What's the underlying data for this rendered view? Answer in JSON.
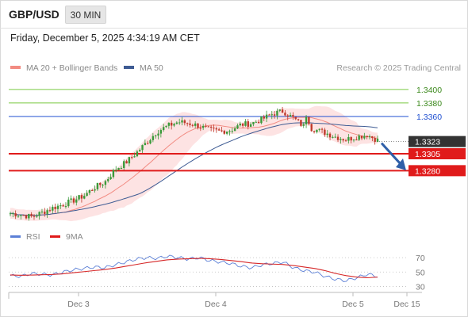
{
  "header": {
    "symbol": "GBP/USD",
    "timeframe": "30 MIN"
  },
  "datetime": "Friday, December 5, 2025 4:34:19 AM CET",
  "legend": {
    "ma_bb": "MA 20 + Bollinger Bands",
    "ma50": "MA 50"
  },
  "credit": "Research © 2025 Trading Central",
  "rsi_legend": {
    "rsi": "RSI",
    "ma": "9MA"
  },
  "colors": {
    "up": "#3a9a3a",
    "down": "#c0392b",
    "ma20": "#f28b82",
    "bb_fill": "#fde3e3",
    "ma50": "#3e5b93",
    "resistance": "#7ac943",
    "pivot": "#1f4fd1",
    "support": "#e01b1b",
    "price_tag": "#333333",
    "arrow": "#2f5fa8",
    "rsi": "#5b7fd6",
    "rsi_ma": "#d62728"
  },
  "chart_data": [
    {
      "type": "candlestick",
      "title": "GBP/USD",
      "x_ticks": [
        "Dec 3",
        "Dec 4",
        "Dec 5",
        "Dec 15"
      ],
      "levels": [
        {
          "value": 1.34,
          "label": "1.3400",
          "kind": "resistance"
        },
        {
          "value": 1.338,
          "label": "1.3380",
          "kind": "resistance"
        },
        {
          "value": 1.336,
          "label": "1.3360",
          "kind": "pivot"
        },
        {
          "value": 1.3323,
          "label": "1.3323",
          "kind": "price"
        },
        {
          "value": 1.3305,
          "label": "1.3305",
          "kind": "support"
        },
        {
          "value": 1.328,
          "label": "1.3280",
          "kind": "support"
        }
      ],
      "ylim": [
        1.3195,
        1.3415
      ],
      "close_path": [
        1.3217,
        1.3215,
        1.3212,
        1.3218,
        1.3225,
        1.323,
        1.3236,
        1.3243,
        1.3255,
        1.3263,
        1.3282,
        1.3292,
        1.3306,
        1.3322,
        1.3338,
        1.3346,
        1.3352,
        1.335,
        1.3346,
        1.334,
        1.3338,
        1.334,
        1.3348,
        1.335,
        1.3356,
        1.3364,
        1.3368,
        1.3357,
        1.3345,
        1.3341,
        1.3336,
        1.333,
        1.3326,
        1.333,
        1.3333,
        1.3325
      ],
      "forecast": {
        "from": 1.3323,
        "to": 1.3284
      }
    },
    {
      "type": "line",
      "title": "RSI",
      "y_ticks": [
        "70",
        "50",
        "30"
      ],
      "ylim": [
        25,
        80
      ],
      "series": [
        {
          "name": "RSI",
          "values": [
            45,
            44,
            48,
            47,
            46,
            50,
            53,
            55,
            57,
            56,
            60,
            64,
            68,
            70,
            69,
            72,
            70,
            68,
            70,
            66,
            64,
            62,
            58,
            56,
            60,
            62,
            64,
            56,
            52,
            50,
            44,
            40,
            38,
            42,
            47,
            44
          ]
        },
        {
          "name": "9MA",
          "values": [
            46,
            45.5,
            45.8,
            46.2,
            46.6,
            47.5,
            49,
            50.5,
            52,
            53.5,
            55.5,
            58,
            60.5,
            63,
            65,
            67,
            68,
            68.5,
            69,
            68.5,
            67.5,
            66,
            64.5,
            62.5,
            61.5,
            61,
            60.5,
            59,
            57,
            55,
            52,
            48,
            45,
            43,
            42,
            43
          ]
        }
      ]
    }
  ]
}
